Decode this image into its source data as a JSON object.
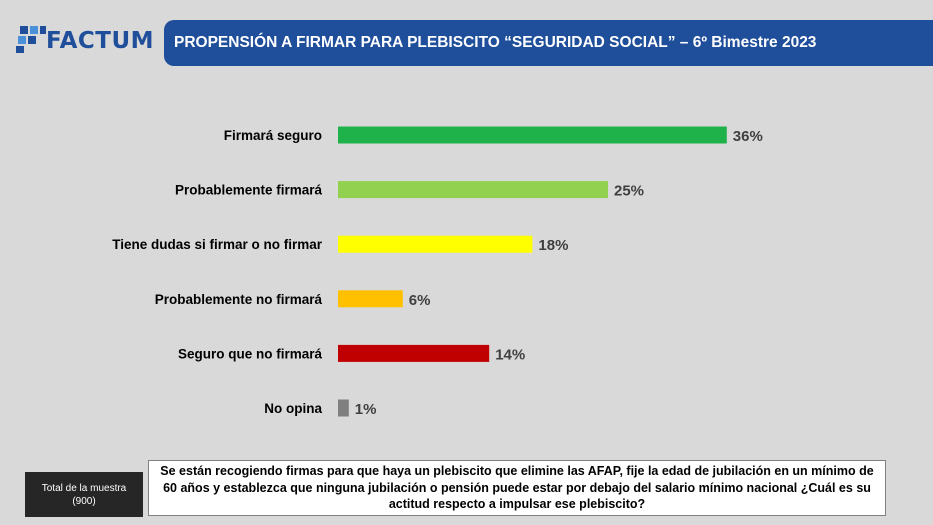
{
  "brand": {
    "name": "FACTUM",
    "color": "#1f4e9a"
  },
  "header": {
    "title": "PROPENSIÓN A FIRMAR PARA PLEBISCITO “SEGURIDAD SOCIAL” – 6º Bimestre 2023"
  },
  "chart_data": {
    "type": "bar",
    "orientation": "horizontal",
    "categories": [
      "Firmará seguro",
      "Probablemente firmará",
      "Tiene dudas si firmar o no firmar",
      "Probablemente no firmará",
      "Seguro que no firmará",
      "No opina"
    ],
    "values": [
      36,
      25,
      18,
      6,
      14,
      1
    ],
    "value_labels": [
      "36%",
      "25%",
      "18%",
      "6%",
      "14%",
      "1%"
    ],
    "colors": [
      "#1fb24a",
      "#92d050",
      "#ffff00",
      "#ffc000",
      "#c00000",
      "#7f7f7f"
    ],
    "unit": "%",
    "xlim": [
      0,
      40
    ],
    "grid": false,
    "legend": "none"
  },
  "footer": {
    "sample_label": "Total de la muestra",
    "sample_n": "(900)",
    "question": "Se están recogiendo firmas para que haya un plebiscito que elimine las AFAP, fije la edad de jubilación en un mínimo de 60 años y establezca que ninguna jubilación o pensión puede estar por debajo del salario mínimo nacional ¿Cuál es su actitud respecto a impulsar ese plebiscito?"
  }
}
